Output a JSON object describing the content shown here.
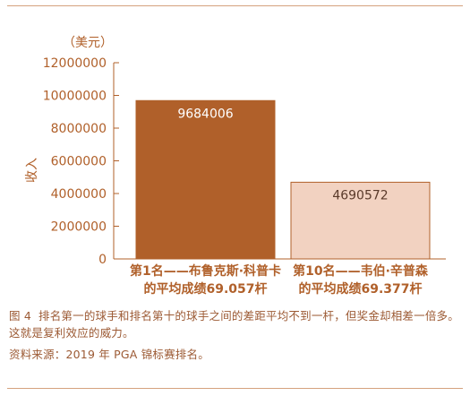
{
  "chart_data": {
    "type": "bar",
    "unit_label": "（美元）",
    "ylabel": "收入",
    "ylim": [
      0,
      12000000
    ],
    "y_ticks": [
      "0",
      "2000000",
      "4000000",
      "6000000",
      "8000000",
      "10000000",
      "12000000"
    ],
    "categories": [
      [
        "第1名——布鲁克斯·科普卡",
        "的平均成绩69.057杆"
      ],
      [
        "第10名——韦伯·辛普森",
        "的平均成绩69.377杆"
      ]
    ],
    "values": [
      9684006,
      4690572
    ],
    "value_labels": [
      "9684006",
      "4690572"
    ],
    "bar_colors": [
      "#b0602a",
      "#f2d2c1"
    ],
    "label_colors": [
      "#ffffff",
      "#5a3a2a"
    ],
    "accent_color": "#b0602a"
  },
  "caption": {
    "figure_label": "图 4",
    "text": "排名第一的球手和排名第十的球手之间的差距平均不到一杆，但奖金却相差一倍多。这就是复利效应的威力。"
  },
  "source": "资料来源：2019 年 PGA 锦标赛排名。"
}
